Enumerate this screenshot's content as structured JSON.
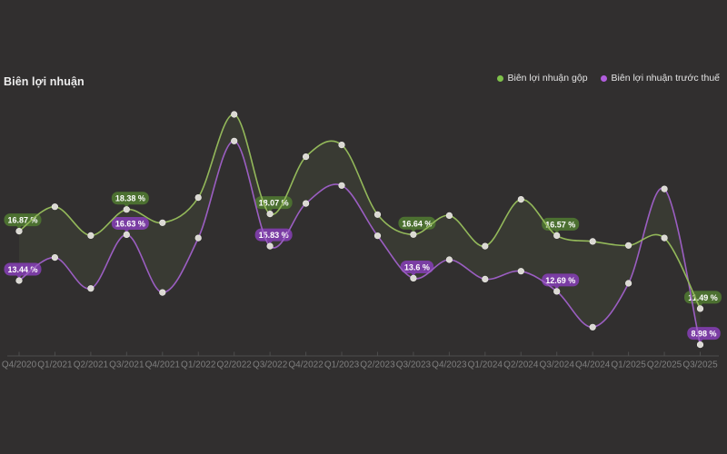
{
  "header": {
    "title": "Biên lợi nhuận"
  },
  "chart_data": {
    "type": "line",
    "title": "Biên lợi nhuận",
    "categories": [
      "Q4/2020",
      "Q1/2021",
      "Q2/2021",
      "Q3/2021",
      "Q4/2021",
      "Q1/2022",
      "Q2/2022",
      "Q3/2022",
      "Q4/2022",
      "Q1/2023",
      "Q2/2023",
      "Q3/2023",
      "Q4/2023",
      "Q1/2024",
      "Q2/2024",
      "Q3/2024",
      "Q4/2024",
      "Q1/2025",
      "Q2/2025",
      "Q3/2025"
    ],
    "series": [
      {
        "name": "Biên lợi nhuận gộp",
        "line_color": "#93b85a",
        "dot_color": "#7ec14a",
        "badge_color": "#4c7031",
        "marker_color": "#dbd9d3",
        "values": [
          16.87,
          18.57,
          16.57,
          18.38,
          17.46,
          19.21,
          24.99,
          18.07,
          22.05,
          22.87,
          18.03,
          16.64,
          17.96,
          15.83,
          19.08,
          16.57,
          16.16,
          15.88,
          16.4,
          11.49
        ]
      },
      {
        "name": "Biên lợi nhuận trước thuế",
        "line_color": "#9b5ec2",
        "dot_color": "#b15ddd",
        "badge_color": "#7a3da3",
        "marker_color": "#dbd9d3",
        "values": [
          13.44,
          15.04,
          12.89,
          16.63,
          12.61,
          16.4,
          23.14,
          15.83,
          18.8,
          20.05,
          16.55,
          13.6,
          14.89,
          13.54,
          14.09,
          12.69,
          10.2,
          13.25,
          19.81,
          8.98
        ]
      }
    ],
    "point_labels": [
      {
        "index": 0,
        "gross": "16.87 %",
        "pretax": "13.44 %"
      },
      {
        "index": 3,
        "gross": "18.38 %",
        "pretax": "16.63 %"
      },
      {
        "index": 7,
        "gross": "18.07 %",
        "pretax": "15.83 %"
      },
      {
        "index": 11,
        "gross": "16.64 %",
        "pretax": "13.6 %"
      },
      {
        "index": 15,
        "gross": "16.57 %",
        "pretax": "12.69 %"
      },
      {
        "index": 19,
        "gross": "11.49 %",
        "pretax": "8.98 %"
      }
    ],
    "xlabel": "",
    "ylabel": "",
    "ylim": [
      8.2,
      26
    ],
    "grid": false,
    "legend_position": "top-right",
    "band_fill": "rgba(148,186,106,0.08)",
    "axis_color": "#4d4d4d",
    "tick_label_color": "#7f7f7f",
    "label_text_color": "#ffffff",
    "background": "#312f2f"
  }
}
